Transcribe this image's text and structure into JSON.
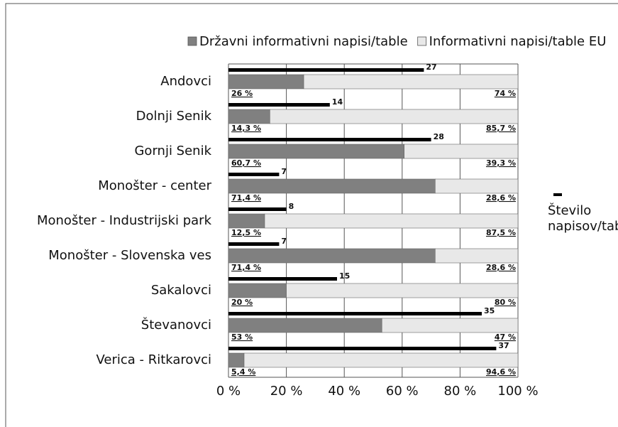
{
  "chart_data": {
    "type": "bar",
    "orientation": "horizontal",
    "stacked": true,
    "categories": [
      "Andovci",
      "Dolnji Senik",
      "Gornji Senik",
      "Monošter - center",
      "Monošter - Industrijski park",
      "Monošter - Slovenska ves",
      "Sakalovci",
      "Števanovci",
      "Verica - Ritkarovci"
    ],
    "series": [
      {
        "name": "Državni informativni napisi/table",
        "color": "#808080",
        "values": [
          26,
          14.3,
          60.7,
          71.4,
          12.5,
          71.4,
          20,
          53,
          5.4
        ],
        "value_labels": [
          "26 %",
          "14,3 %",
          "60,7 %",
          "71,4 %",
          "12,5 %",
          "71,4 %",
          "20 %",
          "53 %",
          "5,4 %"
        ]
      },
      {
        "name": "Informativni napisi/table EU",
        "color": "#e8e8e8",
        "values": [
          74,
          85.7,
          39.3,
          28.6,
          87.5,
          28.6,
          80,
          47,
          94.6
        ],
        "value_labels": [
          "74 %",
          "85,7 %",
          "39,3 %",
          "28,6 %",
          "87,5 %",
          "28,6 %",
          "80 %",
          "47 %",
          "94,6 %"
        ]
      },
      {
        "name": "Število napisov/tabel",
        "color": "#000000",
        "axis": "x2",
        "values": [
          27,
          14,
          28,
          7,
          8,
          7,
          15,
          35,
          37
        ]
      }
    ],
    "xlim": [
      0,
      100
    ],
    "xticks": [
      {
        "value": 0,
        "label": "0 %"
      },
      {
        "value": 20,
        "label": "20 %"
      },
      {
        "value": 40,
        "label": "40 %"
      },
      {
        "value": 60,
        "label": "60 %"
      },
      {
        "value": 80,
        "label": "80 %"
      },
      {
        "value": 100,
        "label": "100 %"
      }
    ],
    "x2lim": [
      0,
      40
    ],
    "grid": true
  }
}
